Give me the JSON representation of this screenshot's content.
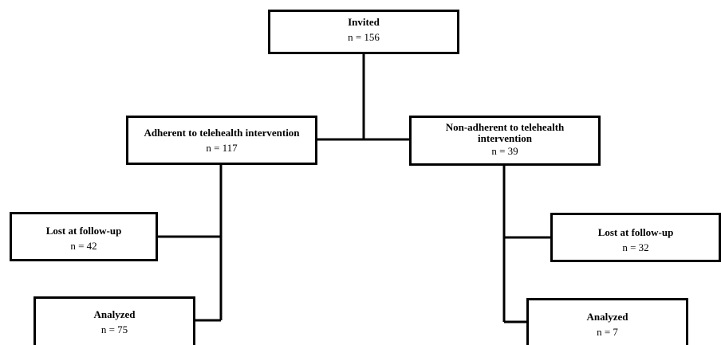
{
  "flowchart": {
    "invited": {
      "title": "Invited",
      "count": "n = 156"
    },
    "adherent": {
      "title": "Adherent to telehealth intervention",
      "count": "n = 117"
    },
    "non_adherent": {
      "title": "Non-adherent to telehealth intervention",
      "count": "n = 39"
    },
    "adherent_lost": {
      "title": "Lost at follow-up",
      "count": "n = 42"
    },
    "adherent_analyzed": {
      "title": "Analyzed",
      "count": "n = 75"
    },
    "non_adherent_lost": {
      "title": "Lost at follow-up",
      "count": "n = 32"
    },
    "non_adherent_analyzed": {
      "title": "Analyzed",
      "count": "n = 7"
    }
  }
}
